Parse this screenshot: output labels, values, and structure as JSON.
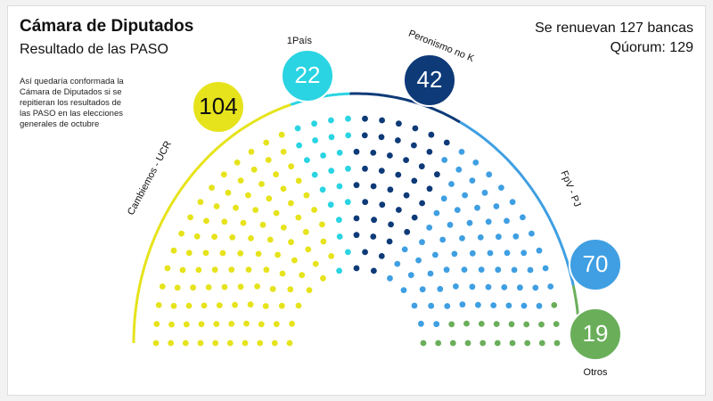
{
  "chart_data": {
    "type": "parliament",
    "title": "Cámara de Diputados",
    "subtitle": "Resultado de las PASO",
    "info": [
      "Se renuevan 127 bancas",
      "Qúorum: 129"
    ],
    "note": "Así quedaría conformada la Cámara de Diputados si se repitieran los resultados de las PASO en las elecciones generales de octubre",
    "series": [
      {
        "name": "Cambiemos - UCR",
        "color": "#e6e31c",
        "value": 104
      },
      {
        "name": "1País",
        "color": "#2ad4e2",
        "value": 22
      },
      {
        "name": "Peronismo no K",
        "color": "#0e3a78",
        "value": 42
      },
      {
        "name": "FpV - PJ",
        "color": "#3f9fe2",
        "value": 70
      },
      {
        "name": "Otros",
        "color": "#6aae5a",
        "value": 19
      }
    ]
  }
}
